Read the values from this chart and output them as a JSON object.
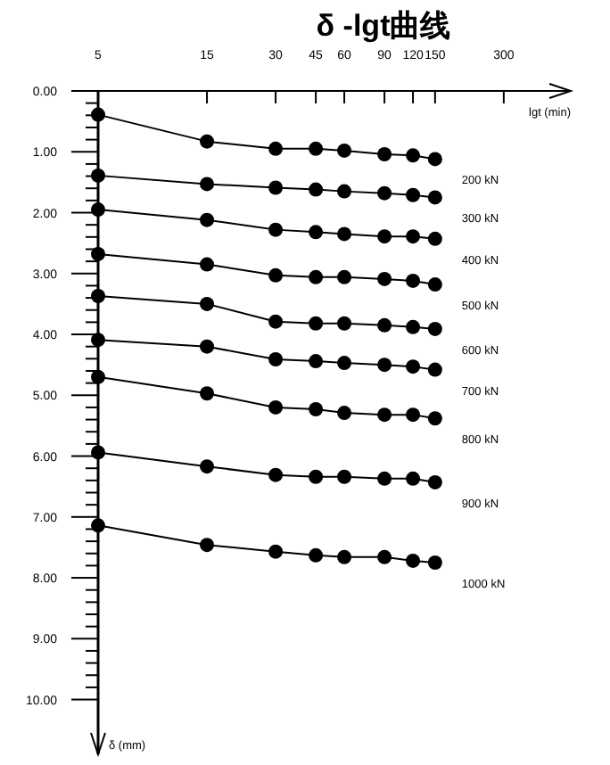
{
  "chart_data": {
    "type": "line",
    "title": "δ -lgt曲线",
    "xlabel": "lgt (min)",
    "ylabel": "δ (mm)",
    "log": "x",
    "marker": "circle",
    "line_style": "solid",
    "x": [
      5,
      15,
      30,
      45,
      60,
      90,
      120,
      150
    ],
    "xlim": [
      5,
      590
    ],
    "ylim": [
      10.9,
      0
    ],
    "xticks": [
      5,
      15,
      30,
      45,
      60,
      90,
      120,
      150,
      300
    ],
    "yticks": [
      {
        "value": 0,
        "label": "0.00"
      },
      {
        "value": 0.2,
        "label": null
      },
      {
        "value": 0.4,
        "label": null
      },
      {
        "value": 0.6,
        "label": null
      },
      {
        "value": 0.8,
        "label": null
      },
      {
        "value": 1,
        "label": "1.00"
      },
      {
        "value": 1.2,
        "label": null
      },
      {
        "value": 1.4,
        "label": null
      },
      {
        "value": 1.6,
        "label": null
      },
      {
        "value": 1.8,
        "label": null
      },
      {
        "value": 2,
        "label": "2.00"
      },
      {
        "value": 2.2,
        "label": null
      },
      {
        "value": 2.4,
        "label": null
      },
      {
        "value": 2.6,
        "label": null
      },
      {
        "value": 2.8,
        "label": null
      },
      {
        "value": 3,
        "label": "3.00"
      },
      {
        "value": 3.2,
        "label": null
      },
      {
        "value": 3.4,
        "label": null
      },
      {
        "value": 3.6,
        "label": null
      },
      {
        "value": 3.8,
        "label": null
      },
      {
        "value": 4,
        "label": "4.00"
      },
      {
        "value": 4.2,
        "label": null
      },
      {
        "value": 4.4,
        "label": null
      },
      {
        "value": 4.6,
        "label": null
      },
      {
        "value": 4.8,
        "label": null
      },
      {
        "value": 5,
        "label": "5.00"
      },
      {
        "value": 5.2,
        "label": null
      },
      {
        "value": 5.4,
        "label": null
      },
      {
        "value": 5.6,
        "label": null
      },
      {
        "value": 5.8,
        "label": null
      },
      {
        "value": 6,
        "label": "6.00"
      },
      {
        "value": 6.2,
        "label": null
      },
      {
        "value": 6.4,
        "label": null
      },
      {
        "value": 6.6,
        "label": null
      },
      {
        "value": 6.8,
        "label": null
      },
      {
        "value": 7,
        "label": "7.00"
      },
      {
        "value": 7.2,
        "label": null
      },
      {
        "value": 7.4,
        "label": null
      },
      {
        "value": 7.6,
        "label": null
      },
      {
        "value": 7.8,
        "label": null
      },
      {
        "value": 8,
        "label": "8.00"
      },
      {
        "value": 8.2,
        "label": null
      },
      {
        "value": 8.4,
        "label": null
      },
      {
        "value": 8.6,
        "label": null
      },
      {
        "value": 8.8,
        "label": null
      },
      {
        "value": 9,
        "label": "9.00"
      },
      {
        "value": 9.2,
        "label": null
      },
      {
        "value": 9.4,
        "label": null
      },
      {
        "value": 9.6,
        "label": null
      },
      {
        "value": 9.8,
        "label": null
      },
      {
        "value": 10,
        "label": "10.00"
      }
    ],
    "series": [
      {
        "name": "200 kN",
        "color": "#000000",
        "values": [
          0.39,
          0.83,
          0.95,
          0.95,
          0.98,
          1.04,
          1.06,
          1.12
        ]
      },
      {
        "name": "300 kN",
        "color": "#000000",
        "values": [
          1.39,
          1.53,
          1.59,
          1.62,
          1.65,
          1.68,
          1.71,
          1.75
        ]
      },
      {
        "name": "400 kN",
        "color": "#000000",
        "values": [
          1.95,
          2.12,
          2.28,
          2.32,
          2.35,
          2.39,
          2.39,
          2.43
        ]
      },
      {
        "name": "500 kN",
        "color": "#000000",
        "values": [
          2.68,
          2.85,
          3.03,
          3.06,
          3.06,
          3.09,
          3.12,
          3.18
        ]
      },
      {
        "name": "600 kN",
        "color": "#000000",
        "values": [
          3.37,
          3.5,
          3.79,
          3.82,
          3.82,
          3.85,
          3.88,
          3.91
        ]
      },
      {
        "name": "700 kN",
        "color": "#000000",
        "values": [
          4.09,
          4.2,
          4.41,
          4.44,
          4.47,
          4.5,
          4.53,
          4.58
        ]
      },
      {
        "name": "800 kN",
        "color": "#000000",
        "values": [
          4.7,
          4.97,
          5.2,
          5.23,
          5.29,
          5.32,
          5.32,
          5.38
        ]
      },
      {
        "name": "900 kN",
        "color": "#000000",
        "values": [
          5.94,
          6.17,
          6.31,
          6.34,
          6.34,
          6.37,
          6.37,
          6.43
        ]
      },
      {
        "name": "1000 kN",
        "color": "#000000",
        "values": [
          7.14,
          7.46,
          7.57,
          7.63,
          7.66,
          7.66,
          7.72,
          7.75
        ]
      }
    ]
  }
}
